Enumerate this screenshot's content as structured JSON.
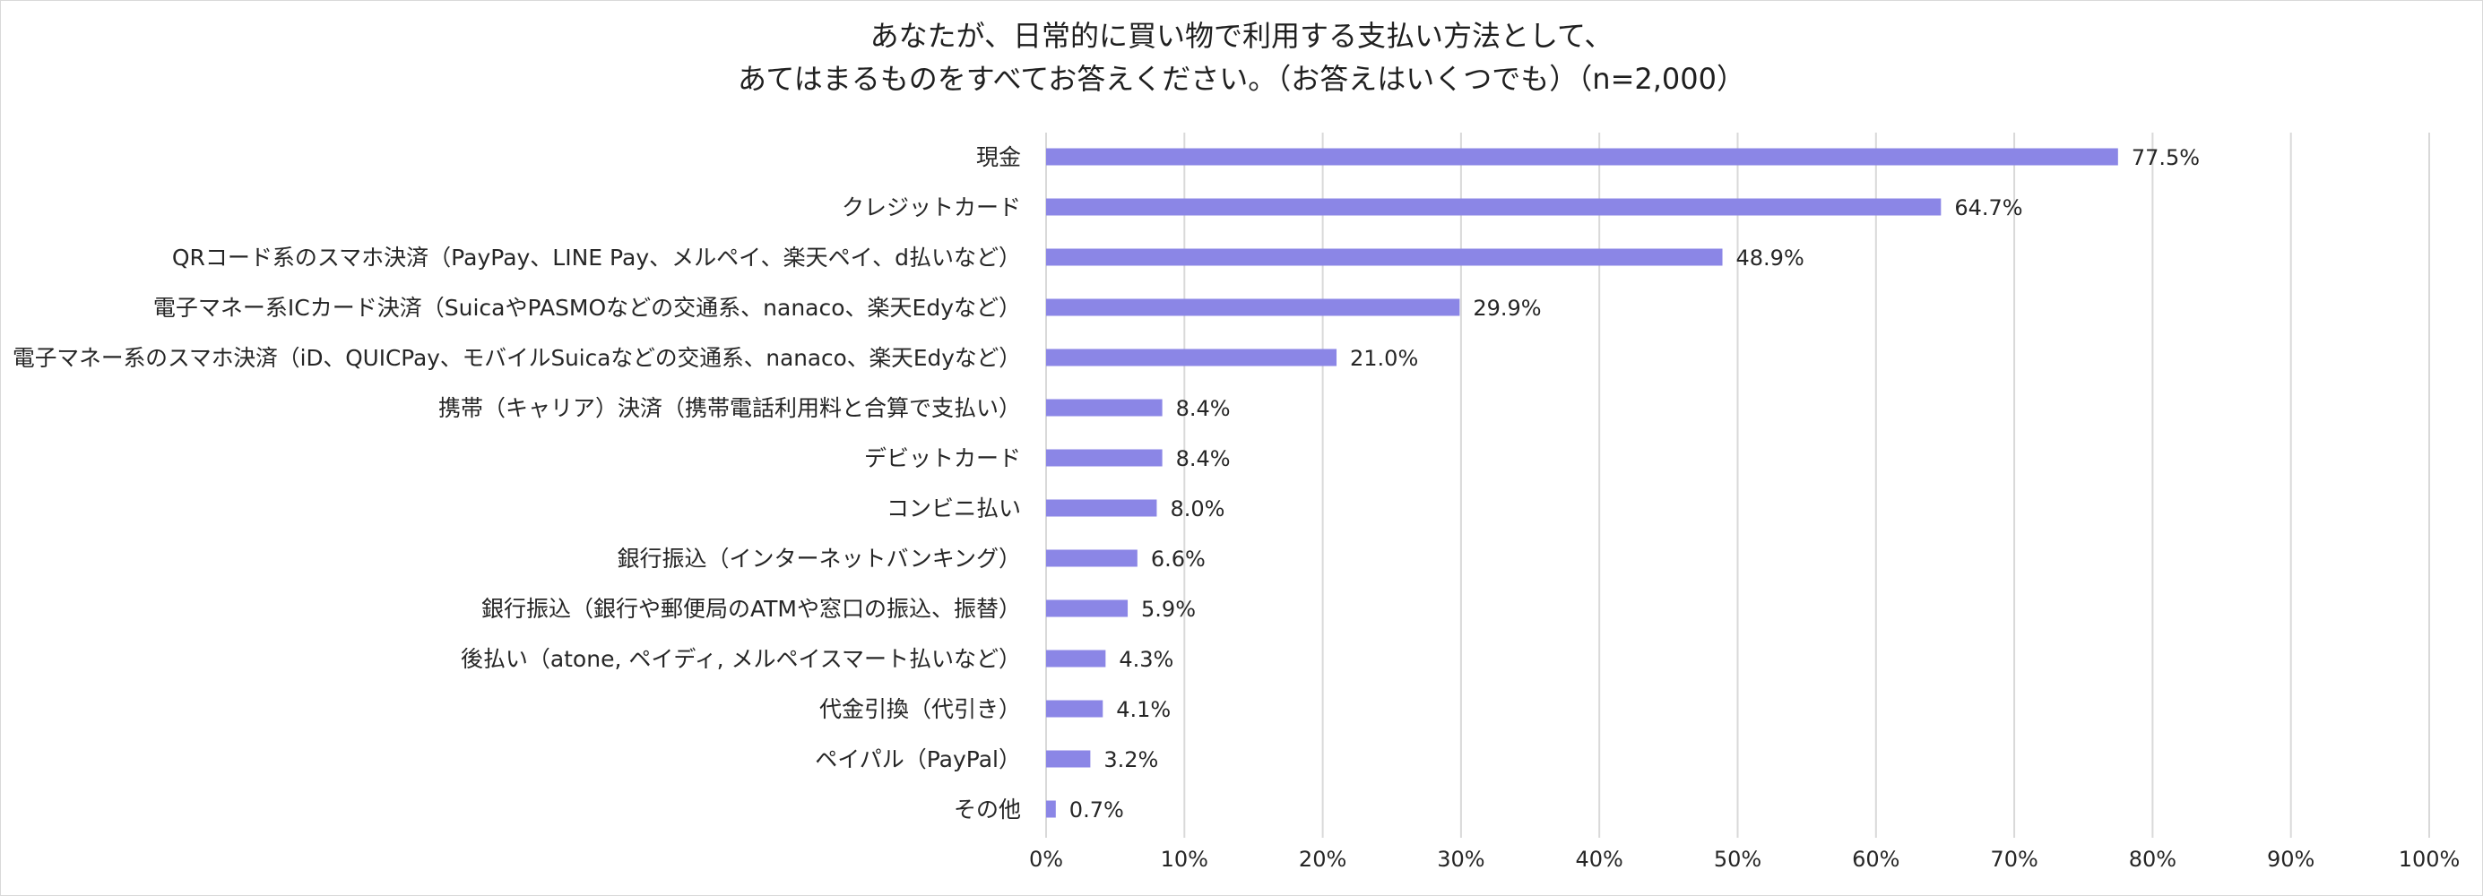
{
  "chart_data": {
    "type": "bar",
    "orientation": "horizontal",
    "title": [
      "あなたが、日常的に買い物で利用する支払い方法として、",
      "あてはまるものをすべてお答えください。（お答えはいくつでも）（n=2,000）"
    ],
    "categories": [
      "現金",
      "クレジットカード",
      "QRコード系のスマホ決済（PayPay、LINE Pay、メルペイ、楽天ペイ、d払いなど）",
      "電子マネー系ICカード決済（SuicaやPASMOなどの交通系、nanaco、楽天Edyなど）",
      "電子マネー系のスマホ決済（iD、QUICPay、モバイルSuicaなどの交通系、nanaco、楽天Edyなど）",
      "携帯（キャリア）決済（携帯電話利用料と合算で支払い）",
      "デビットカード",
      "コンビニ払い",
      "銀行振込（インターネットバンキング）",
      "銀行振込（銀行や郵便局のATMや窓口の振込、振替）",
      "後払い（atone, ペイディ, メルペイスマート払いなど）",
      "代金引換（代引き）",
      "ペイパル（PayPal）",
      "その他"
    ],
    "values": [
      77.5,
      64.7,
      48.9,
      29.9,
      21.0,
      8.4,
      8.4,
      8.0,
      6.6,
      5.9,
      4.3,
      4.1,
      3.2,
      0.7
    ],
    "value_labels": [
      "77.5%",
      "64.7%",
      "48.9%",
      "29.9%",
      "21.0%",
      "8.4%",
      "8.4%",
      "8.0%",
      "6.6%",
      "5.9%",
      "4.3%",
      "4.1%",
      "3.2%",
      "0.7%"
    ],
    "xticks": [
      "0%",
      "10%",
      "20%",
      "30%",
      "40%",
      "50%",
      "60%",
      "70%",
      "80%",
      "90%",
      "100%"
    ],
    "xlim": [
      0,
      100
    ],
    "xlabel": "",
    "ylabel": "",
    "grid": true,
    "legend": "none",
    "colors": {
      "bar": "#8b86e6",
      "grid": "#d9d9d9",
      "text": "#262626"
    }
  }
}
